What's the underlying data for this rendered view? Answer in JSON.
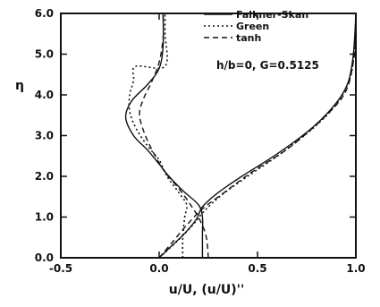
{
  "chart_data": {
    "type": "line",
    "xlabel": "u/U,  (u/U)''",
    "ylabel": "η",
    "xlim": [
      -0.5,
      1.0
    ],
    "ylim": [
      0.0,
      6.0
    ],
    "x_ticks": [
      "-0.5",
      "0.0",
      "0.5",
      "1.0"
    ],
    "x_tick_values": [
      -0.5,
      0.0,
      0.5,
      1.0
    ],
    "y_ticks": [
      "0.0",
      "1.0",
      "2.0",
      "3.0",
      "4.0",
      "5.0",
      "6.0"
    ],
    "y_tick_values": [
      0,
      1,
      2,
      3,
      4,
      5,
      6
    ],
    "grid": false,
    "legend_position": "top-right",
    "annotation": "h/b=0, G=0.5125",
    "series": [
      {
        "name": "Falkner-Skan",
        "style": "solid",
        "groups": [
          [
            [
              0.0,
              0.0
            ],
            [
              0.065,
              0.3
            ],
            [
              0.13,
              0.6
            ],
            [
              0.19,
              0.95
            ],
            [
              0.22,
              1.25
            ],
            [
              0.3,
              1.6
            ],
            [
              0.42,
              2.0
            ],
            [
              0.6,
              2.55
            ],
            [
              0.78,
              3.2
            ],
            [
              0.9,
              3.8
            ],
            [
              0.96,
              4.3
            ],
            [
              0.985,
              4.9
            ],
            [
              0.995,
              5.5
            ],
            [
              1.0,
              6.0
            ]
          ],
          [
            [
              0.22,
              0.0
            ],
            [
              0.22,
              0.6
            ],
            [
              0.22,
              1.0
            ],
            [
              0.2,
              1.3
            ],
            [
              0.12,
              1.65
            ],
            [
              0.05,
              2.0
            ],
            [
              0.0,
              2.3
            ],
            [
              -0.06,
              2.65
            ],
            [
              -0.13,
              3.0
            ],
            [
              -0.17,
              3.45
            ],
            [
              -0.14,
              3.85
            ],
            [
              -0.06,
              4.25
            ],
            [
              0.0,
              4.65
            ],
            [
              0.02,
              5.2
            ],
            [
              0.02,
              6.0
            ]
          ]
        ]
      },
      {
        "name": "Green",
        "style": "dotted",
        "groups": [
          [
            [
              0.0,
              0.0
            ],
            [
              0.09,
              0.4
            ],
            [
              0.17,
              0.8
            ],
            [
              0.23,
              1.15
            ],
            [
              0.32,
              1.55
            ],
            [
              0.45,
              2.0
            ],
            [
              0.63,
              2.6
            ],
            [
              0.81,
              3.3
            ],
            [
              0.92,
              3.9
            ],
            [
              0.975,
              4.5
            ],
            [
              0.993,
              5.2
            ],
            [
              1.0,
              6.0
            ]
          ],
          [
            [
              0.12,
              0.0
            ],
            [
              0.12,
              0.5
            ],
            [
              0.13,
              1.0
            ],
            [
              0.14,
              1.3
            ],
            [
              0.1,
              1.6
            ],
            [
              0.04,
              2.0
            ],
            [
              0.0,
              2.4
            ],
            [
              -0.06,
              2.75
            ],
            [
              -0.12,
              3.2
            ],
            [
              -0.15,
              3.6
            ],
            [
              -0.15,
              4.0
            ],
            [
              -0.13,
              4.35
            ],
            [
              -0.12,
              4.7
            ],
            [
              0.03,
              4.7
            ],
            [
              0.03,
              5.5
            ],
            [
              0.03,
              6.0
            ]
          ]
        ]
      },
      {
        "name": "tanh",
        "style": "dashed",
        "groups": [
          [
            [
              0.0,
              0.0
            ],
            [
              0.07,
              0.4
            ],
            [
              0.14,
              0.8
            ],
            [
              0.22,
              1.2
            ],
            [
              0.33,
              1.6
            ],
            [
              0.47,
              2.1
            ],
            [
              0.66,
              2.7
            ],
            [
              0.85,
              3.5
            ],
            [
              0.95,
              4.1
            ],
            [
              0.99,
              4.9
            ],
            [
              1.0,
              5.5
            ],
            [
              1.0,
              6.0
            ]
          ],
          [
            [
              0.25,
              0.0
            ],
            [
              0.24,
              0.5
            ],
            [
              0.21,
              0.9
            ],
            [
              0.16,
              1.3
            ],
            [
              0.1,
              1.7
            ],
            [
              0.03,
              2.1
            ],
            [
              -0.02,
              2.5
            ],
            [
              -0.07,
              3.0
            ],
            [
              -0.1,
              3.5
            ],
            [
              -0.08,
              3.9
            ],
            [
              -0.04,
              4.3
            ],
            [
              0.0,
              4.8
            ],
            [
              0.02,
              5.4
            ],
            [
              0.02,
              6.0
            ]
          ]
        ]
      }
    ]
  }
}
